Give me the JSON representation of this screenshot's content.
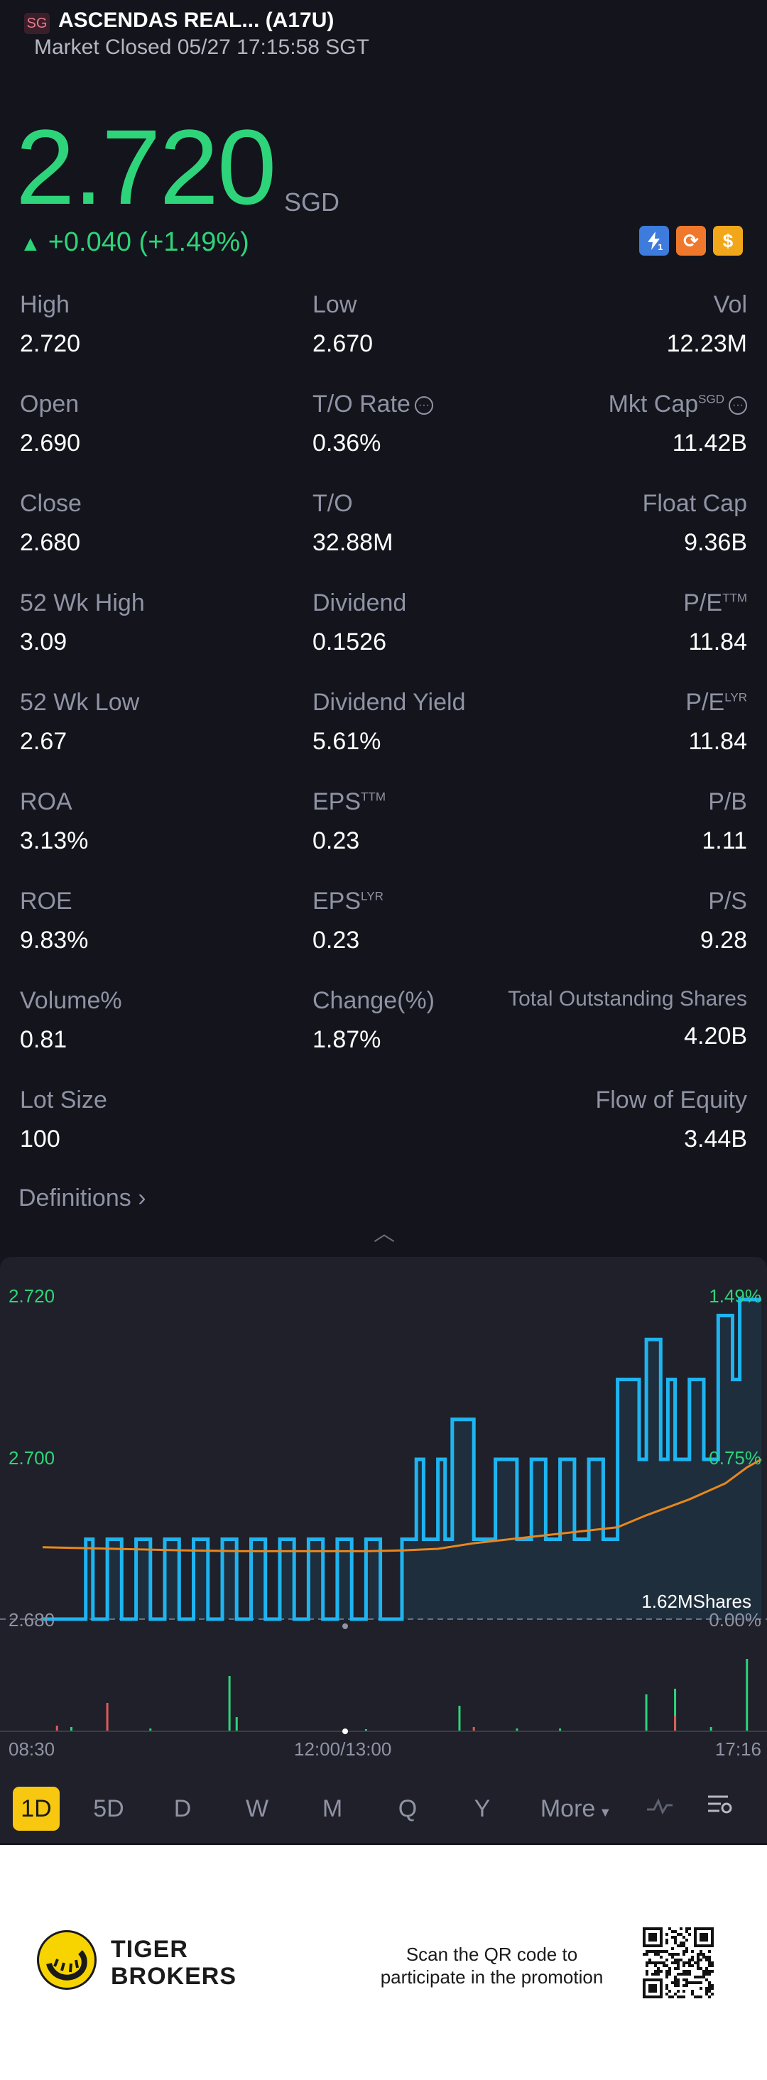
{
  "header": {
    "badge": "SG",
    "title": "ASCENDAS REAL... (A17U)",
    "status": "Market Closed 05/27 17:15:58 SGT"
  },
  "quote": {
    "price": "2.720",
    "currency": "SGD",
    "change": "+0.040 (+1.49%)",
    "up_color": "#2ed47a"
  },
  "badges": [
    {
      "icon": "lightning-icon",
      "text": "1"
    },
    {
      "icon": "exchange-icon",
      "text": "⟳"
    },
    {
      "icon": "dollar-icon",
      "text": "$"
    }
  ],
  "stats": [
    [
      {
        "label": "High",
        "value": "2.720"
      },
      {
        "label": "Low",
        "value": "2.670"
      },
      {
        "label": "Vol",
        "value": "12.23M"
      }
    ],
    [
      {
        "label": "Open",
        "value": "2.690"
      },
      {
        "label": "T/O Rate",
        "value": "0.36%"
      },
      {
        "label": "Mkt Cap",
        "sup": "SGD",
        "value": "11.42B"
      }
    ],
    [
      {
        "label": "Close",
        "value": "2.680"
      },
      {
        "label": "T/O",
        "value": "32.88M"
      },
      {
        "label": "Float Cap",
        "value": "9.36B"
      }
    ],
    [
      {
        "label": "52 Wk High",
        "value": "3.09"
      },
      {
        "label": "Dividend",
        "value": "0.1526"
      },
      {
        "label": "P/E",
        "sup": "TTM",
        "value": "11.84"
      }
    ],
    [
      {
        "label": "52 Wk Low",
        "value": "2.67"
      },
      {
        "label": "Dividend Yield",
        "value": "5.61%"
      },
      {
        "label": "P/E",
        "sup": "LYR",
        "value": "11.84"
      }
    ],
    [
      {
        "label": "ROA",
        "value": "3.13%"
      },
      {
        "label": "EPS",
        "sup": "TTM",
        "value": "0.23"
      },
      {
        "label": "P/B",
        "value": "1.11"
      }
    ],
    [
      {
        "label": "ROE",
        "value": "9.83%"
      },
      {
        "label": "EPS",
        "sup": "LYR",
        "value": "0.23"
      },
      {
        "label": "P/S",
        "value": "9.28"
      }
    ],
    [
      {
        "label": "Volume%",
        "value": "0.81"
      },
      {
        "label": "Change(%)",
        "value": "1.87%"
      },
      {
        "label": "Total Outstanding Shares",
        "value": "4.20B"
      }
    ],
    [
      {
        "label": "Lot Size",
        "value": "100"
      },
      {
        "label": "Flow of Equity",
        "value": "3.44B"
      }
    ]
  ],
  "definitions_label": "Definitions",
  "chart_data": {
    "type": "line",
    "y_left_ticks": [
      "2.720",
      "2.700",
      "2.680"
    ],
    "y_right_ticks": [
      "1.49%",
      "0.75%",
      "0.00%"
    ],
    "volume_label": "1.62MShares",
    "x_ticks": [
      "08:30",
      "12:00/13:00",
      "17:16"
    ],
    "ylim": [
      2.68,
      2.72
    ],
    "series": [
      {
        "color": "#1fb4f0",
        "x": [
          0,
          0.06,
          0.06,
          0.07,
          0.07,
          0.09,
          0.09,
          0.11,
          0.11,
          0.13,
          0.13,
          0.15,
          0.15,
          0.17,
          0.17,
          0.19,
          0.19,
          0.21,
          0.21,
          0.23,
          0.23,
          0.25,
          0.25,
          0.27,
          0.27,
          0.29,
          0.29,
          0.31,
          0.31,
          0.33,
          0.33,
          0.35,
          0.35,
          0.37,
          0.37,
          0.39,
          0.39,
          0.41,
          0.41,
          0.43,
          0.43,
          0.45,
          0.45,
          0.47,
          0.47,
          0.5,
          0.5,
          0.52,
          0.52,
          0.53,
          0.53,
          0.55,
          0.55,
          0.56,
          0.56,
          0.57,
          0.57,
          0.6,
          0.6,
          0.63,
          0.63,
          0.66,
          0.66,
          0.68,
          0.68,
          0.7,
          0.7,
          0.72,
          0.72,
          0.74,
          0.74,
          0.76,
          0.76,
          0.78,
          0.78,
          0.8,
          0.8,
          0.83,
          0.83,
          0.84,
          0.84,
          0.86,
          0.86,
          0.87,
          0.87,
          0.88,
          0.88,
          0.9,
          0.9,
          0.92,
          0.92,
          0.94,
          0.94,
          0.96,
          0.96,
          0.97,
          0.97,
          1.0
        ],
        "y": [
          2.68,
          2.68,
          2.69,
          2.69,
          2.68,
          2.68,
          2.69,
          2.69,
          2.68,
          2.68,
          2.69,
          2.69,
          2.68,
          2.68,
          2.69,
          2.69,
          2.68,
          2.68,
          2.69,
          2.69,
          2.68,
          2.68,
          2.69,
          2.69,
          2.68,
          2.68,
          2.69,
          2.69,
          2.68,
          2.68,
          2.69,
          2.69,
          2.68,
          2.68,
          2.69,
          2.69,
          2.68,
          2.68,
          2.69,
          2.69,
          2.68,
          2.68,
          2.69,
          2.69,
          2.68,
          2.68,
          2.69,
          2.69,
          2.7,
          2.7,
          2.69,
          2.69,
          2.7,
          2.7,
          2.69,
          2.69,
          2.705,
          2.705,
          2.69,
          2.69,
          2.7,
          2.7,
          2.69,
          2.69,
          2.7,
          2.7,
          2.69,
          2.69,
          2.7,
          2.7,
          2.69,
          2.69,
          2.7,
          2.7,
          2.69,
          2.69,
          2.71,
          2.71,
          2.7,
          2.7,
          2.715,
          2.715,
          2.7,
          2.7,
          2.71,
          2.71,
          2.7,
          2.7,
          2.71,
          2.71,
          2.7,
          2.7,
          2.718,
          2.718,
          2.71,
          2.71,
          2.72,
          2.72
        ]
      },
      {
        "color": "#e8871e",
        "x": [
          0,
          0.1,
          0.2,
          0.28,
          0.35,
          0.45,
          0.5,
          0.55,
          0.6,
          0.7,
          0.8,
          0.84,
          0.9,
          0.95,
          0.98,
          1.0
        ],
        "y": [
          2.689,
          2.6888,
          2.6886,
          2.6885,
          2.6885,
          2.6885,
          2.6886,
          2.6888,
          2.6895,
          2.6905,
          2.6915,
          2.693,
          2.695,
          2.697,
          2.699,
          2.7
        ]
      }
    ]
  },
  "period_tabs": [
    "1D",
    "5D",
    "D",
    "W",
    "M",
    "Q",
    "Y",
    "More"
  ],
  "footer": {
    "brand_line1": "TIGER",
    "brand_line2": "BROKERS",
    "scan_line1": "Scan the QR code to",
    "scan_line2": "participate in the promotion"
  }
}
